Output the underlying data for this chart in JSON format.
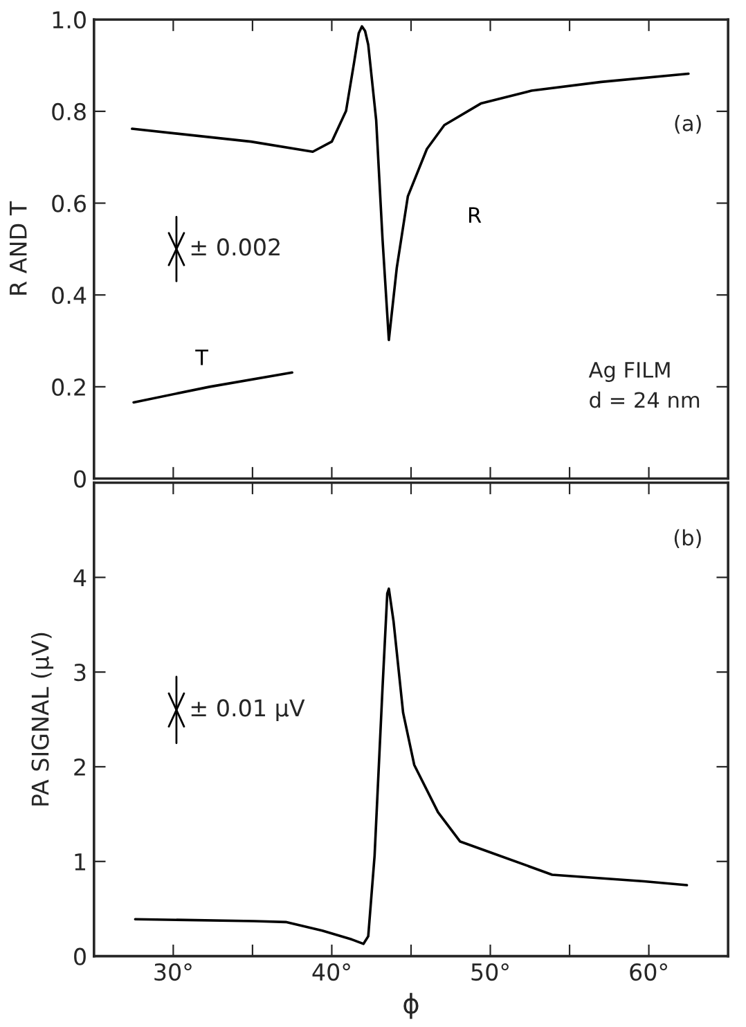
{
  "chart_data": [
    {
      "type": "line",
      "ylabel": "R AND T",
      "xlim": [
        25,
        65
      ],
      "ylim": [
        0,
        1.0
      ],
      "xticks": [
        {
          "value": 30,
          "label": null
        },
        {
          "value": 35,
          "label": null
        },
        {
          "value": 40,
          "label": null
        },
        {
          "value": 45,
          "label": null
        },
        {
          "value": 50,
          "label": null
        },
        {
          "value": 55,
          "label": null
        },
        {
          "value": 60,
          "label": null
        }
      ],
      "yticks": [
        0,
        0.2,
        0.4,
        0.6,
        0.8,
        {
          "value": 1.0,
          "label": "1.0"
        }
      ],
      "tick_labels": "y",
      "annotations": [
        "(a)",
        "± 0.002",
        "Ag FILM\nd = 24 nm"
      ],
      "series": [
        {
          "name": "R",
          "color": "#000000",
          "x": [
            27.4,
            34.9,
            38.8,
            40.0,
            40.9,
            41.4,
            41.7,
            41.9,
            42.1,
            42.3,
            42.8,
            43.2,
            43.6,
            44.1,
            44.8,
            46.0,
            47.1,
            49.4,
            52.6,
            57.0,
            62.5
          ],
          "values": [
            0.762,
            0.734,
            0.712,
            0.734,
            0.801,
            0.905,
            0.97,
            0.985,
            0.975,
            0.945,
            0.781,
            0.522,
            0.302,
            0.459,
            0.615,
            0.718,
            0.77,
            0.817,
            0.845,
            0.864,
            0.882
          ]
        },
        {
          "name": "T",
          "color": "#000000",
          "x": [
            27.5,
            32.3,
            37.5
          ],
          "values": [
            0.166,
            0.2,
            0.231
          ]
        }
      ]
    },
    {
      "type": "line",
      "ylabel": "PA SIGNAL (μV)",
      "xlabel": "ϕ",
      "xlim": [
        25,
        65
      ],
      "ylim": [
        0,
        5
      ],
      "xticks": [
        {
          "value": 30,
          "label": "30°"
        },
        {
          "value": 35,
          "label": null
        },
        {
          "value": 40,
          "label": "40°"
        },
        {
          "value": 45,
          "label": null
        },
        {
          "value": 50,
          "label": "50°"
        },
        {
          "value": 55,
          "label": null
        },
        {
          "value": 60,
          "label": "60°"
        }
      ],
      "yticks": [
        0,
        1,
        2,
        3,
        4
      ],
      "annotations": [
        "(b)",
        "± 0.01 μV"
      ],
      "series": [
        {
          "color": "#000000",
          "x": [
            27.6,
            35.1,
            37.1,
            39.4,
            41.2,
            42.0,
            42.3,
            42.7,
            43.2,
            43.5,
            43.6,
            43.9,
            44.5,
            45.2,
            46.7,
            48.1,
            50.1,
            53.9,
            59.7,
            62.4
          ],
          "values": [
            0.39,
            0.37,
            0.36,
            0.27,
            0.18,
            0.13,
            0.21,
            1.06,
            2.83,
            3.83,
            3.88,
            3.53,
            2.57,
            2.02,
            1.52,
            1.21,
            1.09,
            0.86,
            0.79,
            0.75
          ]
        }
      ]
    }
  ]
}
